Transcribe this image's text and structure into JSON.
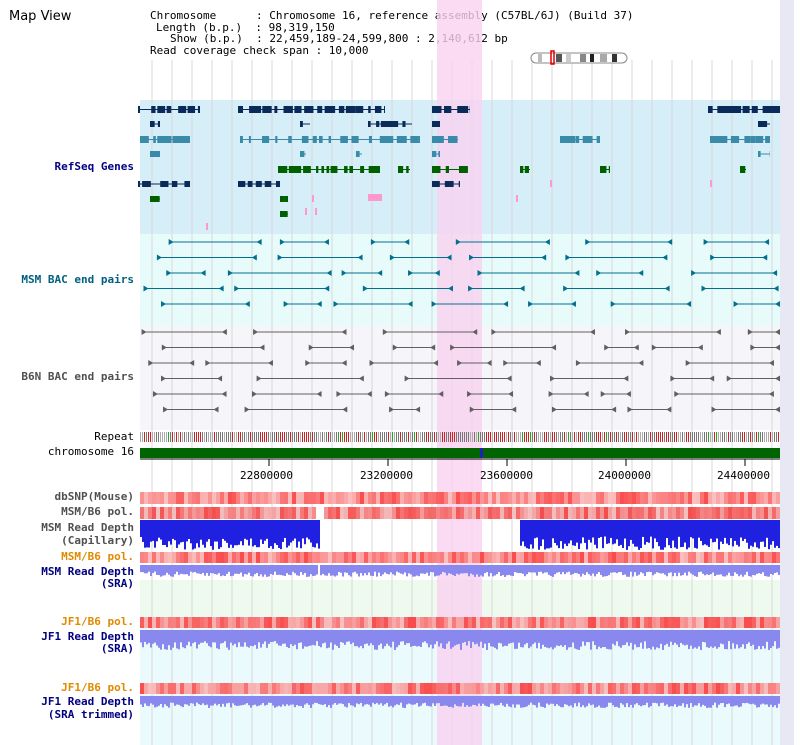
{
  "view_title": "Map View",
  "info": {
    "chromosome": "Chromosome      : Chromosome 16, reference assembly (C57BL/6J) (Build 37)",
    "length": "Length (b.p.)  : 98,319,150",
    "show": "Show (b.p.)  : 22,459,189-24,599,800 : 2,140,612 bp",
    "coverage": "Read coverage check span : 10,000"
  },
  "track_labels": {
    "refseq": "RefSeq Genes",
    "msm_bac": "MSM BAC end pairs",
    "b6n_bac": "B6N BAC end pairs",
    "repeat": "Repeat",
    "chromosome": "chromosome 16",
    "dbsnp": "dbSNP(Mouse)",
    "msm_b6_pol_1": "MSM/B6 pol.",
    "msm_read_depth_cap_1": "MSM Read Depth",
    "msm_read_depth_cap_2": "(Capillary)",
    "msm_b6_pol_2": "MSM/B6 pol.",
    "msm_read_depth_sra_1": "MSM Read Depth",
    "msm_read_depth_sra_2": "(SRA)",
    "jf1_b6_pol_1": "JF1/B6 pol.",
    "jf1_read_depth_sra_1": "JF1 Read Depth",
    "jf1_read_depth_sra_2": "(SRA)",
    "jf1_b6_pol_2": "JF1/B6 pol.",
    "jf1_read_depth_trim_1": "JF1 Read Depth",
    "jf1_read_depth_trim_2": "(SRA trimmed)"
  },
  "axis_ticks": [
    "22800000",
    "23200000",
    "23600000",
    "24000000",
    "24400000"
  ],
  "colors": {
    "refseq_dark": "#0a2a5a",
    "refseq_mid": "#3a8aaa",
    "refseq_green": "#006000",
    "refseq_pink": "#ff99cc",
    "refseq_bg": "#d6eef8",
    "msm_bac_line": "#00708f",
    "msm_bac_bg": "#e8fbfb",
    "b6n_line": "#606060",
    "b6n_bg": "#f6f6fa",
    "chromosome_bar": "#006400",
    "highlight": "#f9d2f0",
    "snp_red": "#f06060",
    "depth_blue": "#2020e0",
    "depth_light_blue": "#8888ee"
  }
}
